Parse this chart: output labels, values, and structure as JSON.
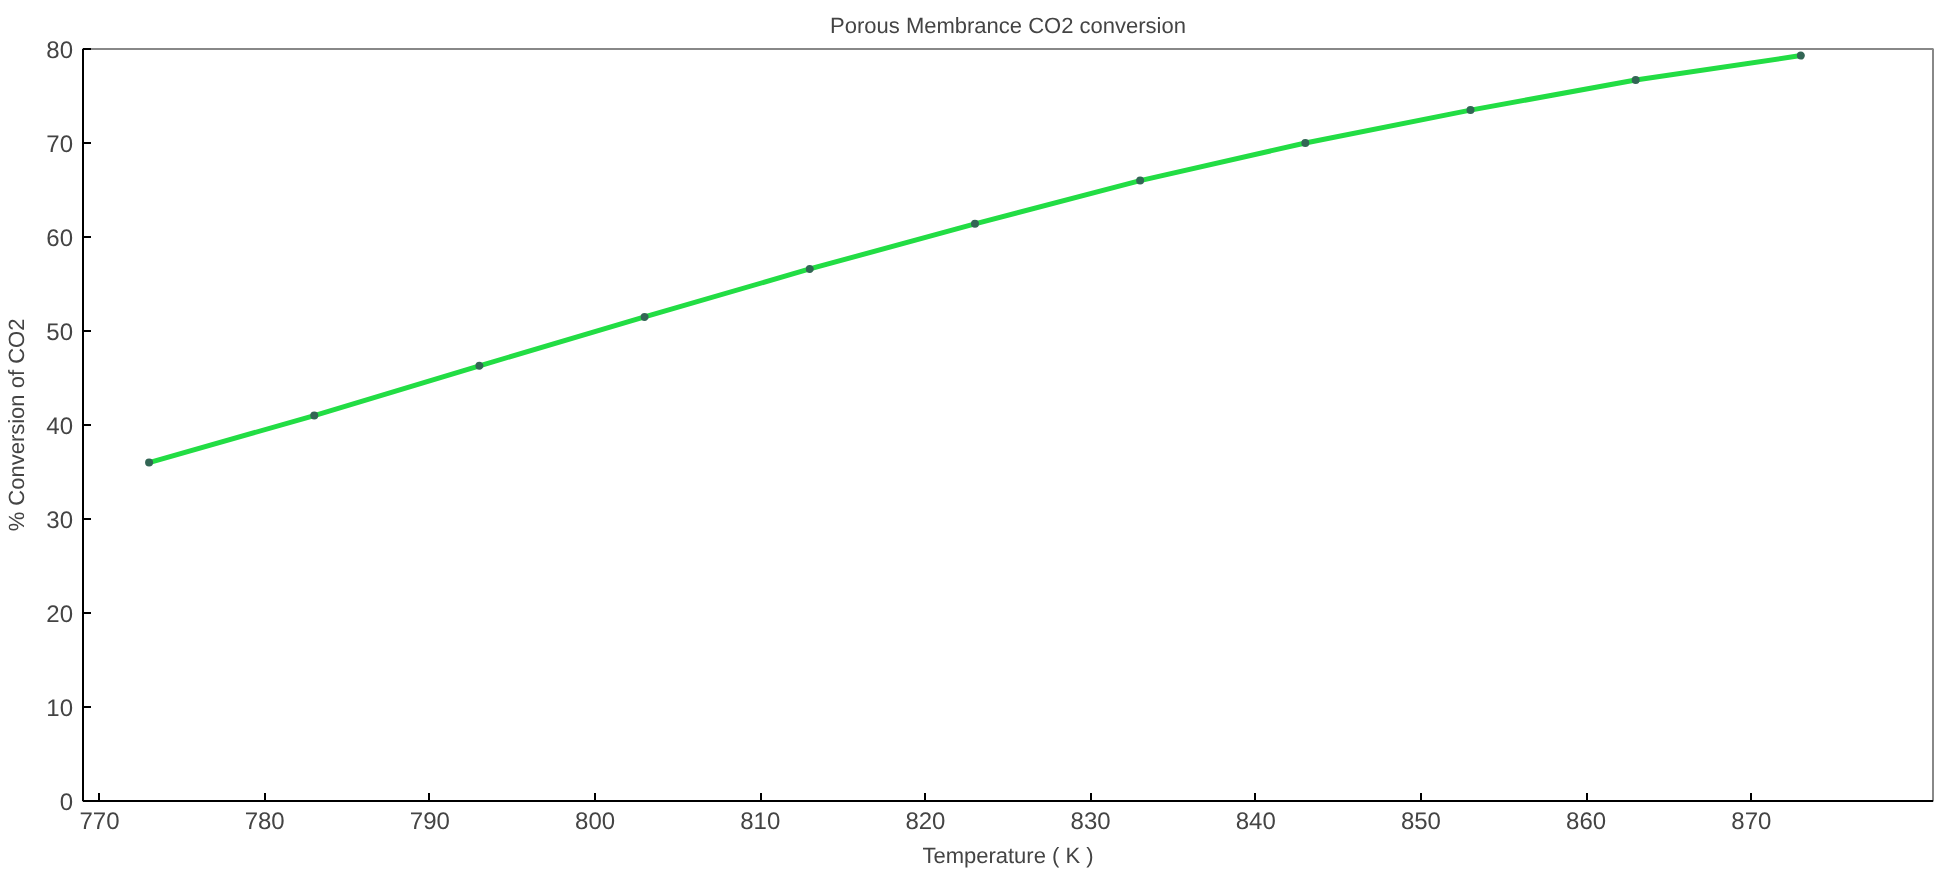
{
  "chart_data": {
    "type": "line",
    "title": "Porous Membrance CO2 conversion",
    "xlabel": "Temperature ( K )",
    "ylabel": "% Conversion of CO2",
    "x": [
      773,
      783,
      793,
      803,
      813,
      823,
      833,
      843,
      853,
      863,
      873
    ],
    "series": [
      {
        "color": "#22dd44",
        "values": [
          36,
          41,
          46.3,
          51.5,
          56.6,
          61.4,
          66,
          70,
          73.5,
          76.7,
          79.3
        ]
      }
    ],
    "xlim": [
      769,
      881
    ],
    "xticks": [
      770,
      780,
      790,
      800,
      810,
      820,
      830,
      840,
      850,
      860,
      870
    ],
    "ylim": [
      0,
      80
    ],
    "yticks": [
      0,
      10,
      20,
      30,
      40,
      50,
      60,
      70,
      80
    ],
    "grid": false,
    "marker": "circle",
    "line_style": "solid"
  }
}
